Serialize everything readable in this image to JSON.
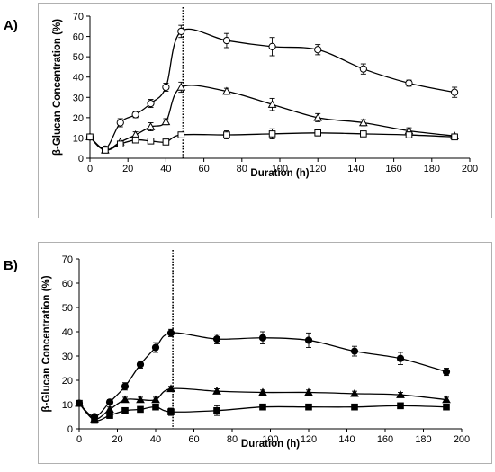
{
  "chart_data": [
    {
      "panel_label": "A)",
      "type": "line",
      "xlabel": "Duration (h)",
      "ylabel": "β-Glucan Concentration (%)",
      "xlim": [
        0,
        200
      ],
      "ylim": [
        0,
        70
      ],
      "xticks": [
        "0",
        "20",
        "40",
        "60",
        "80",
        "100",
        "120",
        "140",
        "160",
        "180",
        "200"
      ],
      "yticks": [
        "0",
        "10",
        "20",
        "30",
        "40",
        "50",
        "60",
        "70"
      ],
      "vline_x": 49,
      "grid": false,
      "series": [
        {
          "marker": "circle-open",
          "x": [
            0,
            8,
            16,
            24,
            32,
            40,
            48,
            72,
            96,
            120,
            144,
            168,
            192
          ],
          "y": [
            10.5,
            4.5,
            17.5,
            21.5,
            27,
            35,
            62.5,
            58,
            55,
            53.5,
            44,
            37,
            32.5
          ],
          "err": [
            1,
            1,
            2,
            1.5,
            2,
            2,
            3,
            3.5,
            4.5,
            2.5,
            2.5,
            1.5,
            2.5
          ]
        },
        {
          "marker": "triangle-open",
          "x": [
            0,
            8,
            16,
            24,
            32,
            40,
            48,
            72,
            96,
            120,
            144,
            168,
            192
          ],
          "y": [
            10.5,
            4,
            8,
            11.5,
            15.5,
            18,
            35,
            33,
            26.5,
            20,
            17.5,
            13.5,
            11
          ],
          "err": [
            1,
            1,
            2,
            1.5,
            2,
            1.5,
            2.5,
            1.5,
            3,
            2,
            1.5,
            1.5,
            1
          ]
        },
        {
          "marker": "square-open",
          "x": [
            0,
            8,
            16,
            24,
            32,
            40,
            48,
            72,
            96,
            120,
            144,
            168,
            192
          ],
          "y": [
            10.5,
            4,
            7,
            9,
            8.5,
            8,
            11.5,
            11.5,
            12,
            12.5,
            12,
            11.5,
            10.5
          ],
          "err": [
            1,
            1,
            1,
            1,
            1,
            1,
            1,
            2,
            2.5,
            1.5,
            1,
            1.5,
            1
          ]
        }
      ]
    },
    {
      "panel_label": "B)",
      "type": "line",
      "xlabel": "Duration (h)",
      "ylabel": "β-Glucan Concentration (%)",
      "xlim": [
        0,
        200
      ],
      "ylim": [
        0,
        70
      ],
      "xticks": [
        "0",
        "20",
        "40",
        "60",
        "80",
        "100",
        "120",
        "140",
        "160",
        "180",
        "200"
      ],
      "yticks": [
        "0",
        "10",
        "20",
        "30",
        "40",
        "50",
        "60",
        "70"
      ],
      "vline_x": 49,
      "grid": false,
      "series": [
        {
          "marker": "circle-filled",
          "x": [
            0,
            8,
            16,
            24,
            32,
            40,
            48,
            72,
            96,
            120,
            144,
            168,
            192
          ],
          "y": [
            10.5,
            5,
            11,
            17.5,
            26.5,
            33.5,
            39.5,
            37,
            37.5,
            36.5,
            32,
            29,
            23.5
          ],
          "err": [
            0.5,
            0.5,
            1,
            1.5,
            1.5,
            2,
            1.5,
            2,
            2.5,
            3,
            2,
            2.5,
            1.5
          ]
        },
        {
          "marker": "triangle-filled",
          "x": [
            0,
            8,
            16,
            24,
            32,
            40,
            48,
            72,
            96,
            120,
            144,
            168,
            192
          ],
          "y": [
            10.5,
            4,
            8,
            12,
            12,
            12,
            16.5,
            15.5,
            15,
            15,
            14.5,
            14,
            12
          ],
          "err": [
            0.5,
            0.5,
            1,
            1,
            1,
            1,
            1,
            1,
            1,
            1,
            1,
            1,
            1
          ]
        },
        {
          "marker": "square-filled",
          "x": [
            0,
            8,
            16,
            24,
            32,
            40,
            48,
            72,
            96,
            120,
            144,
            168,
            192
          ],
          "y": [
            10.5,
            3.5,
            5.5,
            7.5,
            8,
            9,
            7,
            7.5,
            9,
            9,
            9,
            9.5,
            9
          ],
          "err": [
            0.5,
            0.5,
            0.5,
            1,
            1,
            1,
            1.5,
            2,
            1,
            0.5,
            0.5,
            0.5,
            0.5
          ]
        }
      ]
    }
  ]
}
